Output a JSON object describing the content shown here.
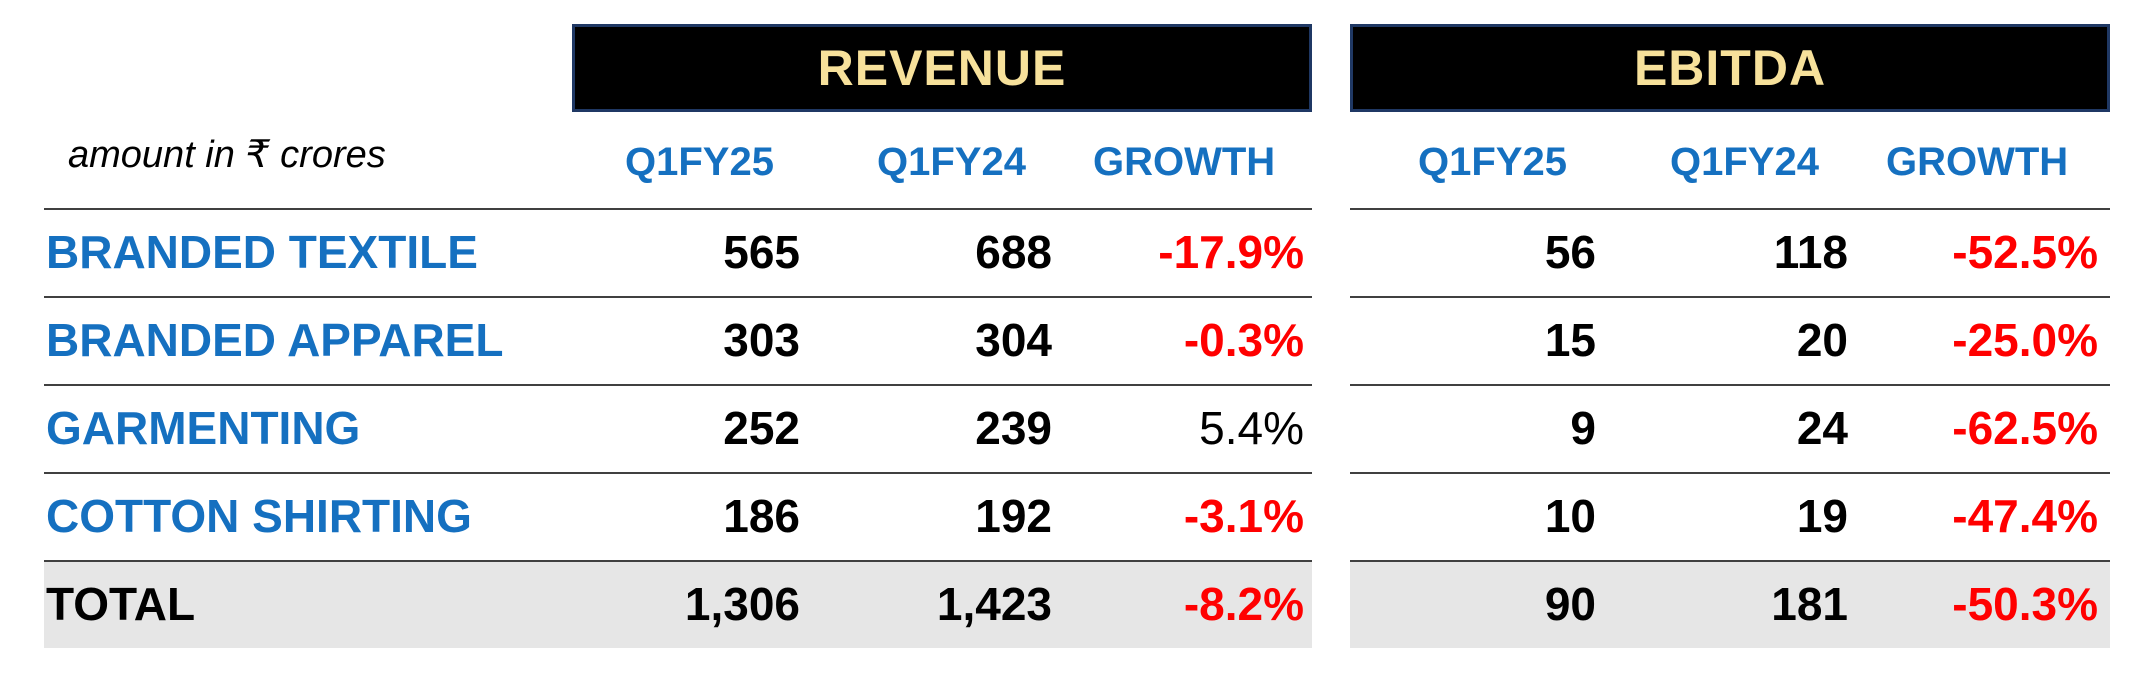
{
  "chart_data": {
    "type": "table",
    "units_note": "amount in ₹ crores",
    "sections": [
      {
        "key": "revenue",
        "title": "REVENUE"
      },
      {
        "key": "ebitda",
        "title": "EBITDA"
      }
    ],
    "columns": [
      "Q1FY25",
      "Q1FY24",
      "GROWTH"
    ],
    "rows": [
      {
        "label": "BRANDED TEXTILE",
        "revenue": [
          "565",
          "688",
          "-17.9%"
        ],
        "ebitda": [
          "56",
          "118",
          "-52.5%"
        ]
      },
      {
        "label": "BRANDED APPAREL",
        "revenue": [
          "303",
          "304",
          "-0.3%"
        ],
        "ebitda": [
          "15",
          "20",
          "-25.0%"
        ]
      },
      {
        "label": "GARMENTING",
        "revenue": [
          "252",
          "239",
          "5.4%"
        ],
        "ebitda": [
          "9",
          "24",
          "-62.5%"
        ]
      },
      {
        "label": "COTTON SHIRTING",
        "revenue": [
          "186",
          "192",
          "-3.1%"
        ],
        "ebitda": [
          "10",
          "19",
          "-47.4%"
        ]
      },
      {
        "label": "TOTAL",
        "revenue": [
          "1,306",
          "1,423",
          "-8.2%"
        ],
        "ebitda": [
          "90",
          "181",
          "-50.3%"
        ],
        "is_total": true
      }
    ],
    "colors": {
      "header_bg": "#000000",
      "header_text": "#f7e19b",
      "label_blue": "#1570c0",
      "negative": "#ff0000",
      "total_bg": "#e6e6e6"
    }
  }
}
